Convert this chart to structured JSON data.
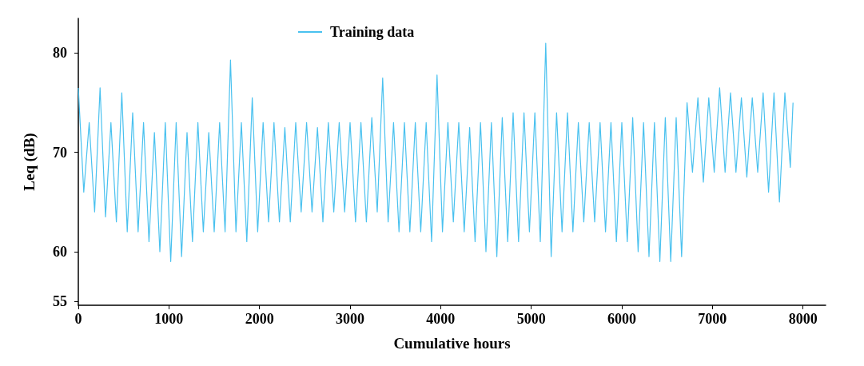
{
  "chart_data": {
    "type": "line",
    "xlabel": "Cumulative hours",
    "ylabel": "Leq (dB)",
    "xlim": [
      0,
      8250
    ],
    "ylim": [
      54.6,
      83.5
    ],
    "xticks": [
      0,
      1000,
      2000,
      3000,
      4000,
      5000,
      6000,
      7000,
      8000
    ],
    "yticks": [
      55,
      60,
      70,
      80
    ],
    "grid": false,
    "legend": "top",
    "marker": "none",
    "line_style": "solid",
    "series": [
      {
        "name": "Training data",
        "color": "#49c1ef",
        "x": [
          0,
          60,
          120,
          180,
          240,
          300,
          360,
          420,
          480,
          540,
          600,
          660,
          720,
          780,
          840,
          900,
          960,
          1020,
          1080,
          1140,
          1200,
          1260,
          1320,
          1380,
          1440,
          1500,
          1560,
          1620,
          1680,
          1740,
          1800,
          1860,
          1920,
          1980,
          2040,
          2100,
          2160,
          2220,
          2280,
          2340,
          2400,
          2460,
          2520,
          2580,
          2640,
          2700,
          2760,
          2820,
          2880,
          2940,
          3000,
          3060,
          3120,
          3180,
          3240,
          3300,
          3360,
          3420,
          3480,
          3540,
          3600,
          3660,
          3720,
          3780,
          3840,
          3900,
          3960,
          4020,
          4080,
          4140,
          4200,
          4260,
          4320,
          4380,
          4440,
          4500,
          4560,
          4620,
          4680,
          4740,
          4800,
          4860,
          4920,
          4980,
          5040,
          5100,
          5160,
          5220,
          5280,
          5340,
          5400,
          5460,
          5520,
          5580,
          5640,
          5700,
          5760,
          5820,
          5880,
          5940,
          6000,
          6060,
          6120,
          6180,
          6240,
          6300,
          6360,
          6420,
          6480,
          6540,
          6600,
          6660,
          6720,
          6780,
          6840,
          6900,
          6960,
          7020,
          7080,
          7140,
          7200,
          7260,
          7320,
          7380,
          7440,
          7500,
          7560,
          7620,
          7680,
          7740,
          7800,
          7860,
          7890
        ],
        "values": [
          76.5,
          66,
          73,
          64,
          76.5,
          63.5,
          73,
          63,
          76,
          62,
          74,
          62,
          73,
          61,
          72,
          60,
          73,
          59,
          73,
          59.5,
          72,
          61,
          73,
          62,
          72,
          62,
          73,
          62,
          79.3,
          62,
          73,
          61,
          75.5,
          62,
          73,
          63,
          73,
          63,
          72.5,
          63,
          73,
          64,
          73,
          64,
          72.5,
          63,
          73,
          64,
          73,
          64,
          73,
          63,
          73,
          63,
          73.5,
          64,
          77.5,
          63,
          73,
          62,
          73,
          62,
          73,
          62,
          73,
          61,
          77.8,
          62,
          73,
          63,
          73,
          62,
          72.5,
          61,
          73,
          60,
          73,
          59.5,
          73.5,
          61,
          74,
          61,
          74,
          62,
          74,
          61,
          81,
          59.5,
          74,
          62,
          74,
          62,
          73,
          63,
          73,
          63,
          73,
          62,
          73,
          61,
          73,
          61,
          73.5,
          60,
          73,
          59.5,
          73,
          59,
          73.5,
          59,
          73.5,
          59.5,
          75,
          68,
          75.5,
          67,
          75.5,
          68,
          76.5,
          68,
          76,
          68,
          75.5,
          67.5,
          75.5,
          68,
          76,
          66,
          76,
          65,
          76,
          68.5,
          75
        ]
      }
    ]
  }
}
